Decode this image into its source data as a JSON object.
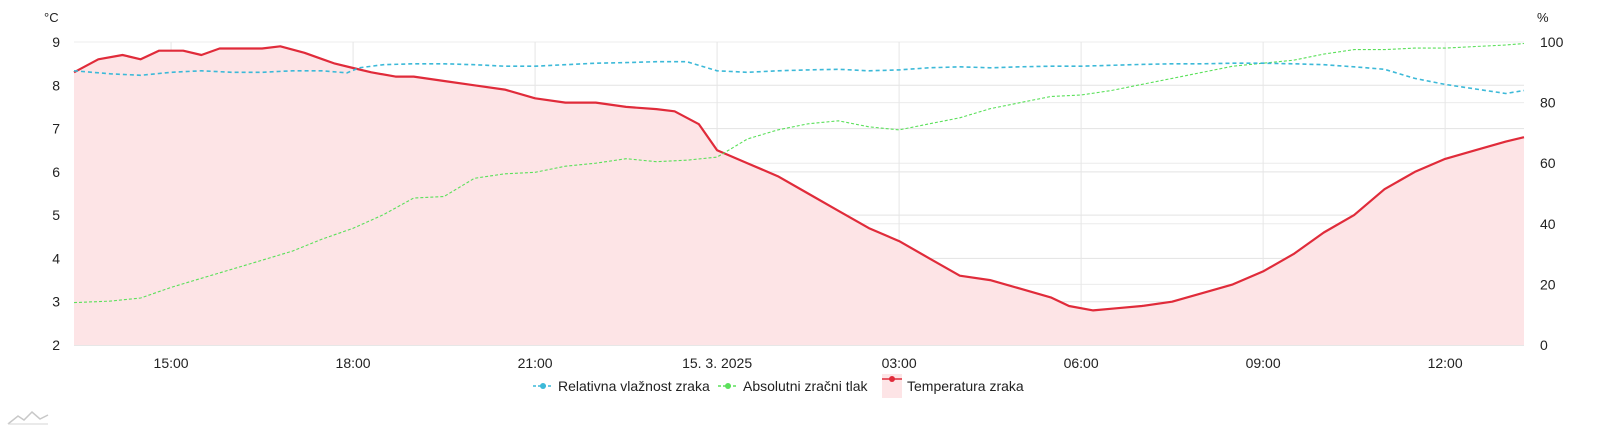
{
  "chart_data": {
    "type": "line",
    "title": "",
    "left_axis": {
      "unit": "°C",
      "ylim": [
        2,
        9
      ],
      "ticks": [
        "2",
        "3",
        "4",
        "5",
        "6",
        "7",
        "8",
        "9"
      ]
    },
    "right_axis": {
      "unit": "%",
      "ylim": [
        0,
        100
      ],
      "ticks": [
        "0",
        "20",
        "40",
        "60",
        "80",
        "100"
      ]
    },
    "x_axis": {
      "xlim_hours": [
        -10.6,
        13.3
      ],
      "ticks": [
        {
          "h": -9,
          "label": "15:00"
        },
        {
          "h": -6,
          "label": "18:00"
        },
        {
          "h": -3,
          "label": "21:00"
        },
        {
          "h": 0,
          "label": "15. 3. 2025"
        },
        {
          "h": 3,
          "label": "03:00"
        },
        {
          "h": 6,
          "label": "06:00"
        },
        {
          "h": 9,
          "label": "09:00"
        },
        {
          "h": 12,
          "label": "12:00"
        }
      ]
    },
    "grid": true,
    "legend_position": "bottom",
    "series": [
      {
        "name": "Relativna vlažnost zraka",
        "axis": "right",
        "color": "#3cb9d8",
        "style": "dashed",
        "x": [
          -10.6,
          -10,
          -9.5,
          -9,
          -8.5,
          -8,
          -7.5,
          -7,
          -6.5,
          -6.1,
          -5.9,
          -5.5,
          -5,
          -4.5,
          -4,
          -3.5,
          -3,
          -2.5,
          -2,
          -1.5,
          -1,
          -0.5,
          0,
          0.5,
          1,
          1.5,
          2,
          2.5,
          3,
          3.5,
          4,
          4.5,
          5,
          5.5,
          6,
          6.5,
          7,
          7.5,
          8,
          8.5,
          9,
          9.5,
          10,
          10.5,
          11,
          11.5,
          12,
          12.5,
          13,
          13.3
        ],
        "values": [
          90.5,
          89.5,
          89,
          90,
          90.5,
          90,
          90,
          90.5,
          90.5,
          89.8,
          91.5,
          92.5,
          92.8,
          92.8,
          92.5,
          92,
          92,
          92.5,
          93,
          93.2,
          93.5,
          93.5,
          90.5,
          90,
          90.5,
          90.8,
          91,
          90.5,
          90.8,
          91.5,
          91.8,
          91.5,
          91.8,
          92,
          92,
          92.3,
          92.6,
          92.8,
          92.8,
          93,
          93,
          92.8,
          92.5,
          91.8,
          91,
          88,
          86,
          84.5,
          83,
          84
        ]
      },
      {
        "name": "Absolutni zračni tlak",
        "axis": "right",
        "color": "#5be05b",
        "style": "dashed-thin",
        "x": [
          -10.6,
          -10,
          -9.5,
          -9,
          -8.5,
          -8,
          -7.5,
          -7,
          -6.5,
          -6,
          -5.5,
          -5,
          -4.5,
          -4,
          -3.5,
          -3,
          -2.5,
          -2,
          -1.5,
          -1,
          -0.5,
          0,
          0.5,
          1,
          1.5,
          2,
          2.5,
          3,
          3.5,
          4,
          4.5,
          5,
          5.5,
          6,
          6.5,
          7,
          7.5,
          8,
          8.5,
          9,
          9.5,
          10,
          10.5,
          11,
          11.5,
          12,
          12.5,
          13,
          13.3
        ],
        "values": [
          14,
          14.5,
          15.5,
          19,
          22,
          25,
          28,
          31,
          35,
          38.5,
          43,
          48.5,
          49,
          55,
          56.5,
          57,
          59,
          60,
          61.5,
          60.5,
          61,
          62,
          68,
          71,
          73,
          74,
          72,
          71,
          73,
          75,
          78,
          80,
          82,
          82.5,
          84,
          86,
          88,
          90,
          92,
          93,
          94,
          96,
          97.5,
          97.5,
          98,
          98,
          98.5,
          99,
          99.5
        ]
      },
      {
        "name": "Temperatura zraka",
        "axis": "left",
        "color": "#e02b3a",
        "fill": "#fde4e6",
        "style": "solid",
        "x": [
          -10.6,
          -10.2,
          -9.8,
          -9.5,
          -9.2,
          -8.8,
          -8.5,
          -8.2,
          -7.8,
          -7.5,
          -7.2,
          -6.8,
          -6.5,
          -6.3,
          -6,
          -5.7,
          -5.3,
          -5,
          -4.5,
          -4,
          -3.5,
          -3,
          -2.5,
          -2,
          -1.5,
          -1,
          -0.7,
          -0.3,
          0,
          0.5,
          1,
          1.5,
          2,
          2.5,
          3,
          3.5,
          4,
          4.5,
          5,
          5.5,
          5.8,
          6.2,
          6.6,
          7,
          7.5,
          8,
          8.5,
          9,
          9.5,
          10,
          10.5,
          11,
          11.5,
          12,
          12.5,
          13,
          13.3
        ],
        "values": [
          8.3,
          8.6,
          8.7,
          8.6,
          8.8,
          8.8,
          8.7,
          8.85,
          8.85,
          8.85,
          8.9,
          8.75,
          8.6,
          8.5,
          8.4,
          8.3,
          8.2,
          8.2,
          8.1,
          8,
          7.9,
          7.7,
          7.6,
          7.6,
          7.5,
          7.45,
          7.4,
          7.1,
          6.5,
          6.2,
          5.9,
          5.5,
          5.1,
          4.7,
          4.4,
          4.0,
          3.6,
          3.5,
          3.3,
          3.1,
          2.9,
          2.8,
          2.85,
          2.9,
          3.0,
          3.2,
          3.4,
          3.7,
          4.1,
          4.6,
          5.0,
          5.6,
          6.0,
          6.3,
          6.5,
          6.7,
          6.8
        ]
      }
    ],
    "legend": [
      {
        "series": 0,
        "label": "Relativna vlažnost zraka"
      },
      {
        "series": 1,
        "label": "Absolutni zračni tlak"
      },
      {
        "series": 2,
        "label": "Temperatura zraka"
      }
    ]
  }
}
